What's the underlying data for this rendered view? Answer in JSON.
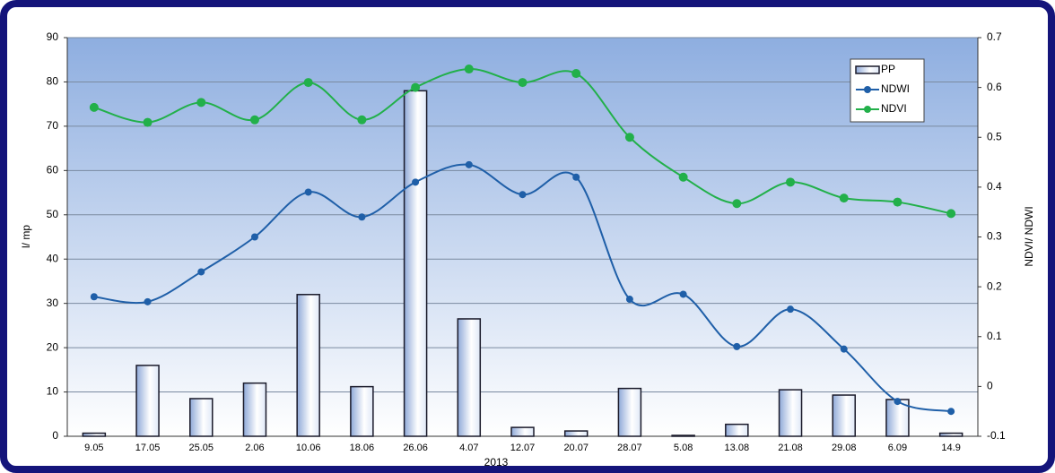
{
  "chart_data": {
    "type": "combo",
    "xlabel": "2013",
    "ylabel": "l/ mp",
    "y2label": "NDVI/ NDWI",
    "categories": [
      "9.05",
      "17.05",
      "25.05",
      "2.06",
      "10.06",
      "18.06",
      "26.06",
      "4.07",
      "12.07",
      "20.07",
      "28.07",
      "5.08",
      "13.08",
      "21.08",
      "29.08",
      "6.09",
      "14.9"
    ],
    "series": [
      {
        "name": "PP",
        "type": "bar",
        "color": "#8fa9d8",
        "values": [
          0.7,
          16,
          8.5,
          12,
          32,
          11.2,
          78,
          26.5,
          2,
          1.2,
          10.8,
          0.2,
          2.7,
          10.5,
          9.3,
          8.3,
          0.7
        ]
      },
      {
        "name": "NDWI",
        "type": "line",
        "axis": "y2",
        "color": "#1f5fa8",
        "values": [
          0.18,
          0.17,
          0.23,
          0.3,
          0.39,
          0.34,
          0.41,
          0.445,
          0.385,
          0.42,
          0.175,
          0.185,
          0.08,
          0.155,
          0.075,
          -0.03,
          -0.05
        ]
      },
      {
        "name": "NDVI",
        "type": "line",
        "axis": "y2",
        "color": "#22b04a",
        "values": [
          0.56,
          0.53,
          0.57,
          0.535,
          0.61,
          0.535,
          0.6,
          0.637,
          0.61,
          0.628,
          0.5,
          0.42,
          0.367,
          0.41,
          0.378,
          0.37,
          0.347
        ]
      }
    ],
    "ylim": [
      0,
      90
    ],
    "yticks": [
      0,
      10,
      20,
      30,
      40,
      50,
      60,
      70,
      80,
      90
    ],
    "y2lim": [
      -0.1,
      0.7
    ],
    "y2ticks": [
      -0.1,
      0,
      0.1,
      0.2,
      0.3,
      0.4,
      0.5,
      0.6,
      0.7
    ],
    "grid": true,
    "legend": "upper right"
  }
}
